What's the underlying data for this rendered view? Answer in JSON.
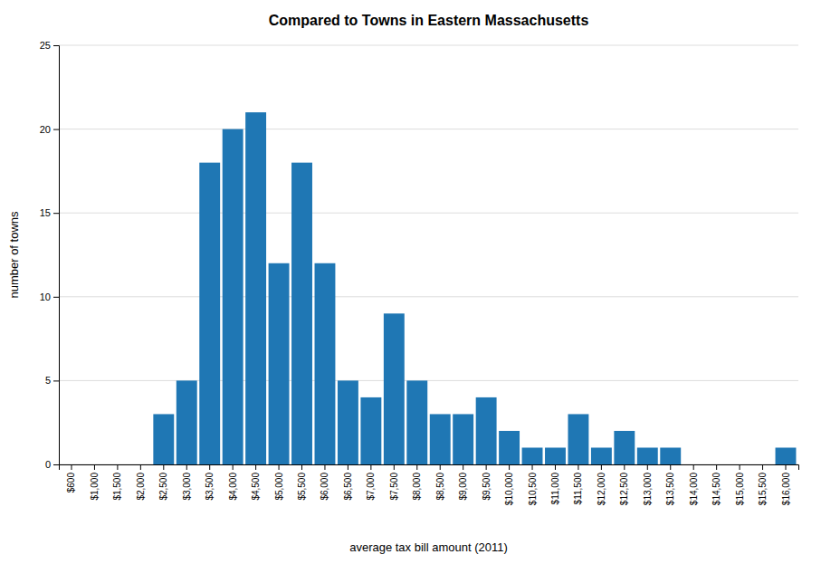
{
  "chart_data": {
    "type": "bar",
    "title": "Compared to Towns in Eastern Massachusetts",
    "x_label": "average tax bill amount (2011)",
    "y_label": "number of towns",
    "categories": [
      "$600",
      "$1,000",
      "$1,500",
      "$2,000",
      "$2,500",
      "$3,000",
      "$3,500",
      "$4,000",
      "$4,500",
      "$5,000",
      "$5,500",
      "$6,000",
      "$6,500",
      "$7,000",
      "$7,500",
      "$8,000",
      "$8,500",
      "$9,000",
      "$9,500",
      "$10,000",
      "$10,500",
      "$11,000",
      "$11,500",
      "$12,000",
      "$12,500",
      "$13,000",
      "$13,500",
      "$14,000",
      "$14,500",
      "$15,000",
      "$15,500",
      "$16,000"
    ],
    "values": [
      0,
      0,
      0,
      0,
      3,
      5,
      18,
      20,
      21,
      12,
      18,
      12,
      5,
      4,
      9,
      5,
      3,
      3,
      4,
      2,
      1,
      1,
      3,
      1,
      2,
      1,
      1,
      0,
      0,
      0,
      0,
      1
    ],
    "ylim": [
      0,
      25
    ],
    "yticks": [
      0,
      5,
      10,
      15,
      20,
      25
    ],
    "grid": true
  }
}
